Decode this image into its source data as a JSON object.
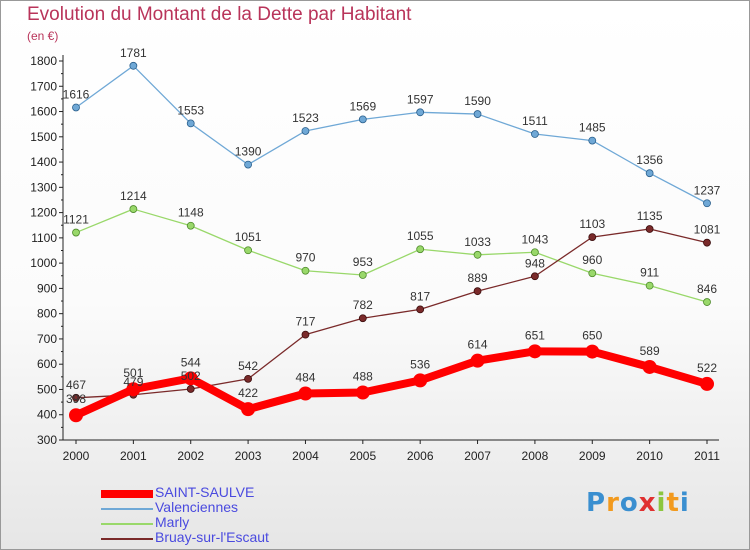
{
  "header": {
    "title": "Evolution du Montant de la Dette par Habitant",
    "unit": "(en €)"
  },
  "logo": {
    "letters": [
      "P",
      "r",
      "o",
      "x",
      "i",
      "t",
      "i"
    ],
    "colors": [
      "#3a8fd0",
      "#f29a1e",
      "#3a8fd0",
      "#e03030",
      "#8cc63e",
      "#f29a1e",
      "#3a8fd0"
    ]
  },
  "chart_data": {
    "type": "line",
    "title": "Evolution du Montant de la Dette par Habitant",
    "ylabel": "(en €)",
    "xlabel": "",
    "categories": [
      "2000",
      "2001",
      "2002",
      "2003",
      "2004",
      "2005",
      "2006",
      "2007",
      "2008",
      "2009",
      "2010",
      "2011"
    ],
    "ylim": [
      300,
      1800
    ],
    "yticks": [
      300,
      400,
      500,
      600,
      700,
      800,
      900,
      1000,
      1100,
      1200,
      1300,
      1400,
      1500,
      1600,
      1700,
      1800
    ],
    "grid": false,
    "legend": "bottom-left",
    "series": [
      {
        "name": "SAINT-SAULVE",
        "color": "#ff0000",
        "values": [
          398,
          501,
          544,
          422,
          484,
          488,
          536,
          614,
          651,
          650,
          589,
          522
        ]
      },
      {
        "name": "Valenciennes",
        "color": "#6fa8d6",
        "values": [
          1616,
          1781,
          1553,
          1390,
          1523,
          1569,
          1597,
          1590,
          1511,
          1485,
          1356,
          1237
        ]
      },
      {
        "name": "Marly",
        "color": "#99d86a",
        "values": [
          1121,
          1214,
          1148,
          1051,
          970,
          953,
          1055,
          1033,
          1043,
          960,
          911,
          846
        ]
      },
      {
        "name": "Bruay-sur-l'Escaut",
        "color": "#7a2a2a",
        "values": [
          467,
          479,
          502,
          542,
          717,
          782,
          817,
          889,
          948,
          1103,
          1135,
          1081
        ]
      }
    ]
  }
}
